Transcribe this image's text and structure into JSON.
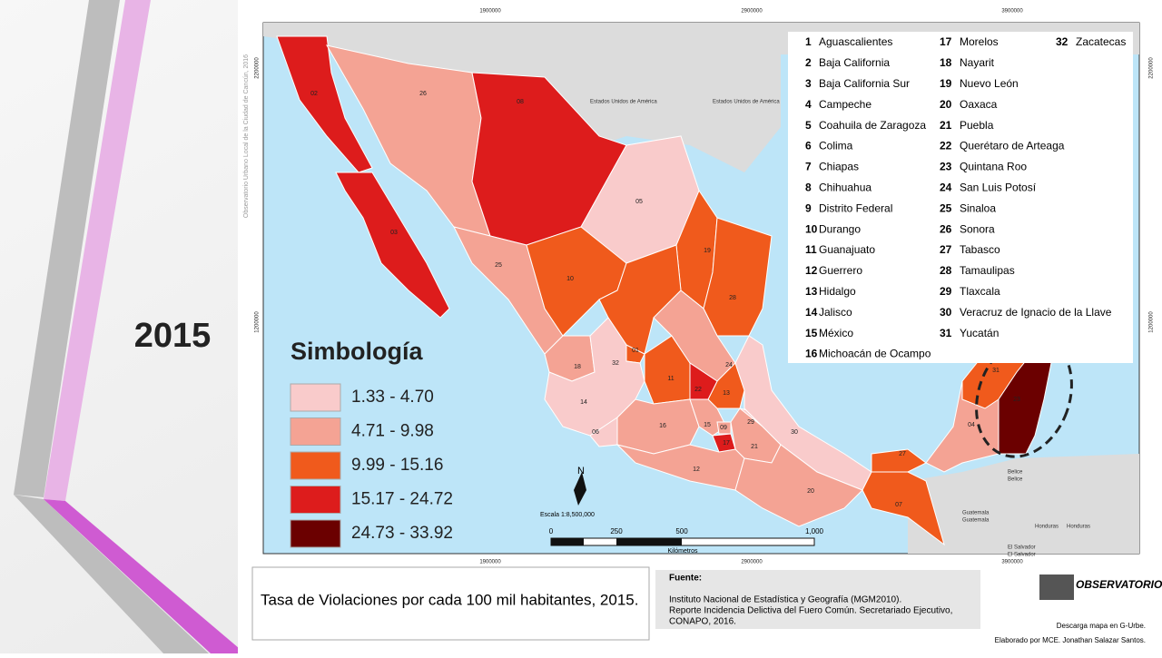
{
  "slide_title": "2015",
  "map": {
    "side_credit": "Observatorio Urbano Local de la Ciudad de Cancún, 2016",
    "grid_x_labels": [
      "1900000",
      "2900000",
      "3900000"
    ],
    "grid_y_labels": [
      "2200000",
      "1200000"
    ],
    "countries": [
      "Estados Unidos de América",
      "Estados Unidos de América",
      "Belice",
      "Belice",
      "Guatemala",
      "Guatemala",
      "Honduras",
      "Honduras",
      "El Salvador",
      "El Salvador"
    ],
    "state_labels": [
      "02",
      "26",
      "08",
      "03",
      "05",
      "25",
      "10",
      "19",
      "28",
      "01",
      "32",
      "18",
      "11",
      "24",
      "13",
      "14",
      "16",
      "15",
      "09",
      "29",
      "21",
      "06",
      "12",
      "30",
      "20",
      "27",
      "07",
      "04",
      "31",
      "23",
      "22",
      "17"
    ],
    "north": "N",
    "scale_label": "Escala 1:8,500,000",
    "scale_ticks": [
      "0",
      "250",
      "500",
      "1,000"
    ],
    "scale_unit": "Kilómetros"
  },
  "legend": {
    "title": "Simbología",
    "classes": [
      "1.33 - 4.70",
      "4.71 - 9.98",
      "9.99 - 15.16",
      "15.17 - 24.72",
      "24.73 - 33.92"
    ]
  },
  "state_list": [
    {
      "num": "1",
      "name": "Aguascalientes"
    },
    {
      "num": "2",
      "name": "Baja California"
    },
    {
      "num": "3",
      "name": "Baja California Sur"
    },
    {
      "num": "4",
      "name": "Campeche"
    },
    {
      "num": "5",
      "name": "Coahuila de Zaragoza"
    },
    {
      "num": "6",
      "name": "Colima"
    },
    {
      "num": "7",
      "name": "Chiapas"
    },
    {
      "num": "8",
      "name": "Chihuahua"
    },
    {
      "num": "9",
      "name": "Distrito Federal"
    },
    {
      "num": "10",
      "name": "Durango"
    },
    {
      "num": "11",
      "name": "Guanajuato"
    },
    {
      "num": "12",
      "name": "Guerrero"
    },
    {
      "num": "13",
      "name": "Hidalgo"
    },
    {
      "num": "14",
      "name": "Jalisco"
    },
    {
      "num": "15",
      "name": "México"
    },
    {
      "num": "16",
      "name": "Michoacán de Ocampo"
    },
    {
      "num": "17",
      "name": "Morelos"
    },
    {
      "num": "18",
      "name": "Nayarit"
    },
    {
      "num": "19",
      "name": "Nuevo León"
    },
    {
      "num": "20",
      "name": "Oaxaca"
    },
    {
      "num": "21",
      "name": "Puebla"
    },
    {
      "num": "22",
      "name": "Querétaro de Arteaga"
    },
    {
      "num": "23",
      "name": "Quintana Roo"
    },
    {
      "num": "24",
      "name": "San Luis Potosí"
    },
    {
      "num": "25",
      "name": "Sinaloa"
    },
    {
      "num": "26",
      "name": "Sonora"
    },
    {
      "num": "27",
      "name": "Tabasco"
    },
    {
      "num": "28",
      "name": "Tamaulipas"
    },
    {
      "num": "29",
      "name": "Tlaxcala"
    },
    {
      "num": "30",
      "name": "Veracruz de Ignacio de la Llave"
    },
    {
      "num": "31",
      "name": "Yucatán"
    },
    {
      "num": "32",
      "name": "Zacatecas"
    }
  ],
  "footer": {
    "title": "Tasa de Violaciones por cada 100 mil habitantes, 2015.",
    "source_heading": "Fuente:",
    "source_lines": [
      "Instituto Nacional de Estadística y Geografía (MGM2010).",
      "Reporte Incidencia Delictiva del Fuero Común. Secretariado Ejecutivo,",
      "CONAPO, 2016."
    ],
    "logo": "OBSERVATORIO",
    "download": "Descarga mapa en G-Urbe.",
    "author": "Elaborado por MCE. Jonathan Salazar Santos."
  }
}
